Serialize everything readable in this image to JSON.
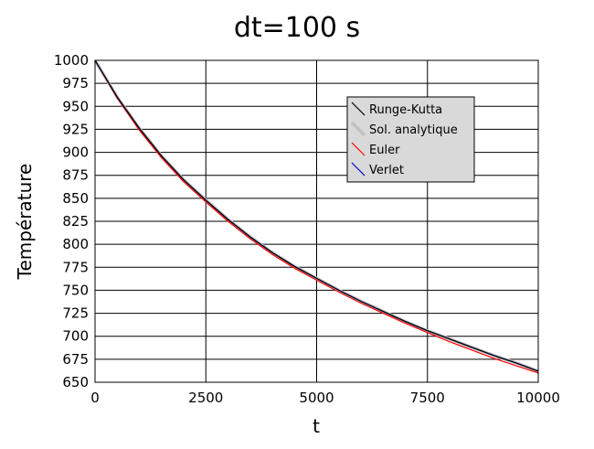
{
  "chart_data": {
    "type": "line",
    "title": "dt=100 s",
    "xlabel": "t",
    "ylabel": "Température",
    "xlim": [
      0,
      10000
    ],
    "ylim": [
      650,
      1000
    ],
    "xticks": [
      0,
      2500,
      5000,
      7500,
      10000
    ],
    "yticks": [
      650,
      675,
      700,
      725,
      750,
      775,
      800,
      825,
      850,
      875,
      900,
      925,
      950,
      975,
      1000
    ],
    "grid": true,
    "legend_position": "top-right",
    "x": [
      0,
      500,
      1000,
      1500,
      2000,
      2500,
      3000,
      3500,
      4000,
      4500,
      5000,
      5500,
      6000,
      6500,
      7000,
      7500,
      8000,
      8500,
      9000,
      9500,
      10000
    ],
    "series": [
      {
        "name": "Runge-Kutta",
        "color": "#000000",
        "values": [
          1000,
          960,
          926,
          896,
          870,
          848,
          827,
          808,
          791,
          776,
          763,
          750,
          738,
          727,
          716,
          706,
          697,
          688,
          679,
          671,
          662
        ]
      },
      {
        "name": "Sol. analytique",
        "color": "#c0c0c0",
        "values": [
          1000,
          960,
          926,
          896,
          870,
          848,
          827,
          808,
          791,
          776,
          763,
          750,
          738,
          727,
          716,
          706,
          697,
          688,
          679,
          671,
          662
        ]
      },
      {
        "name": "Euler",
        "color": "#ff0000",
        "values": [
          1000,
          959,
          924,
          894,
          868,
          846,
          825,
          806,
          789,
          774,
          761,
          748,
          736,
          725,
          714,
          704,
          694,
          685,
          676,
          668,
          660
        ]
      },
      {
        "name": "Verlet",
        "color": "#0000cc",
        "values": [
          1000,
          960,
          926,
          896,
          870,
          848,
          827,
          808,
          791,
          776,
          763,
          750,
          738,
          727,
          716,
          706,
          697,
          688,
          679,
          671,
          662
        ]
      }
    ]
  }
}
